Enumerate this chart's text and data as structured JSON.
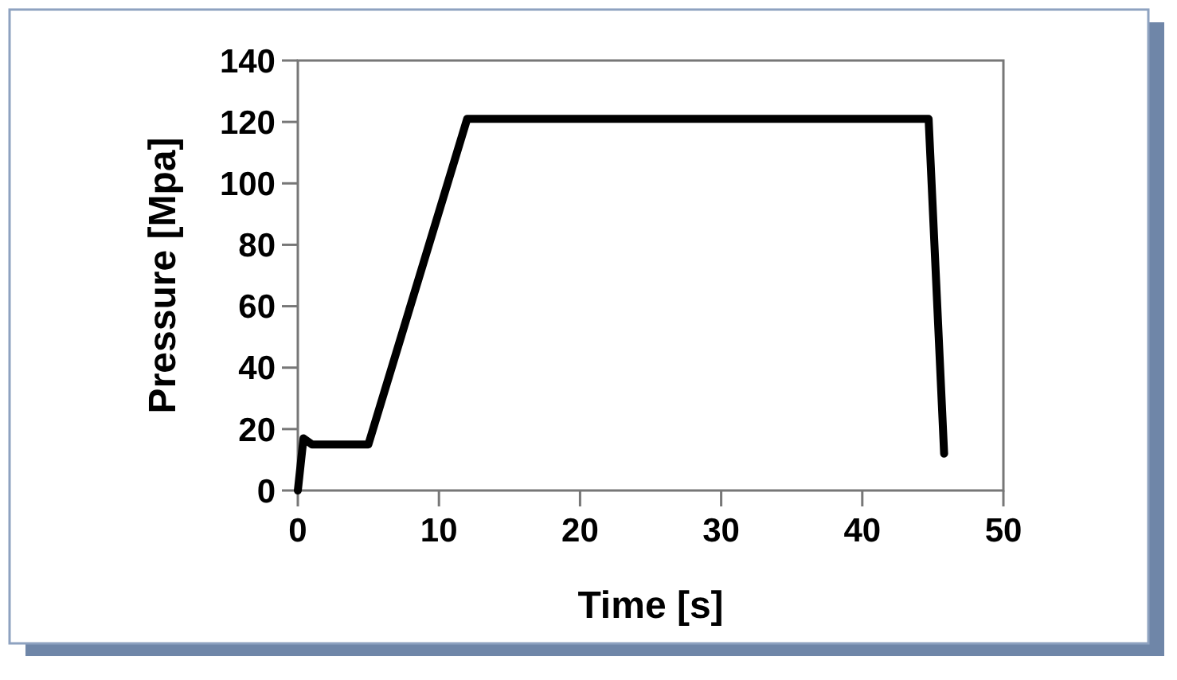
{
  "chart_data": {
    "type": "line",
    "xlabel": "Time [s]",
    "ylabel": "Pressure [Mpa]",
    "series": [
      {
        "color": "#000000",
        "x": [
          0,
          0.4,
          1,
          5,
          12,
          44.7,
          45.8
        ],
        "values": [
          0,
          17,
          15,
          15,
          121,
          121,
          12
        ]
      }
    ],
    "xlim": [
      0,
      50
    ],
    "xticks": [
      0,
      10,
      20,
      30,
      40,
      50
    ],
    "ylim": [
      0,
      140
    ],
    "yticks": [
      0,
      20,
      40,
      60,
      80,
      100,
      120,
      140
    ],
    "grid": false,
    "marker": "none",
    "line_style": "solid"
  }
}
